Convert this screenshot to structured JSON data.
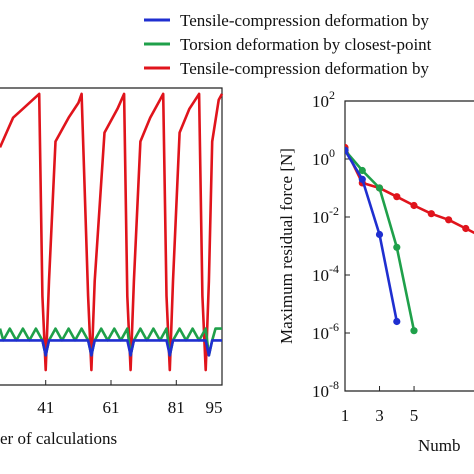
{
  "legend": {
    "placement": "top",
    "entries": [
      {
        "label": "Tensile-compression deformation by",
        "color": "#1f2fd0"
      },
      {
        "label": "Torsion deformation by closest-point",
        "color": "#1fa04a"
      },
      {
        "label": "Tensile-compression deformation by",
        "color": "#e0141c"
      }
    ]
  },
  "chart_data": [
    {
      "type": "line",
      "xlabel": "er of calculations",
      "ylabel": "",
      "xticks": [
        "41",
        "61",
        "81",
        "95"
      ],
      "xlim": [
        27,
        95
      ],
      "ylim": [
        0,
        1
      ],
      "grid": false,
      "series": [
        {
          "name": "Tensile-compression deformation by",
          "color": "#1f2fd0",
          "x": [
            27,
            40,
            41,
            42,
            54,
            55,
            56,
            66,
            67,
            68,
            78,
            79,
            80,
            90,
            91,
            92,
            95
          ],
          "y": [
            0.15,
            0.15,
            0.1,
            0.15,
            0.15,
            0.1,
            0.15,
            0.15,
            0.1,
            0.15,
            0.15,
            0.1,
            0.15,
            0.15,
            0.1,
            0.15,
            0.15
          ]
        },
        {
          "name": "Torsion deformation by closest-point",
          "color": "#1fa04a",
          "x": [
            27,
            28,
            30,
            32,
            34,
            36,
            38,
            40,
            41,
            42,
            44,
            46,
            48,
            50,
            52,
            54,
            55,
            56,
            58,
            60,
            62,
            64,
            66,
            67,
            68,
            70,
            72,
            74,
            76,
            78,
            79,
            80,
            82,
            84,
            86,
            88,
            90,
            91,
            92,
            93,
            95
          ],
          "y": [
            0.19,
            0.15,
            0.19,
            0.15,
            0.19,
            0.15,
            0.19,
            0.15,
            0.1,
            0.15,
            0.19,
            0.15,
            0.19,
            0.15,
            0.19,
            0.15,
            0.1,
            0.15,
            0.19,
            0.15,
            0.19,
            0.15,
            0.19,
            0.1,
            0.15,
            0.19,
            0.15,
            0.19,
            0.15,
            0.19,
            0.1,
            0.15,
            0.19,
            0.15,
            0.19,
            0.15,
            0.19,
            0.1,
            0.15,
            0.19,
            0.19
          ]
        },
        {
          "name": "Tensile-compression deformation by",
          "color": "#e0141c",
          "x": [
            27,
            29,
            31,
            34,
            37,
            39,
            40,
            41,
            42,
            44,
            48,
            51,
            52,
            54,
            55,
            56,
            59,
            63,
            65,
            66,
            67,
            68,
            70,
            73,
            76,
            77,
            78,
            79,
            80,
            82,
            85,
            88,
            89,
            90,
            91,
            92,
            94,
            95
          ],
          "y": [
            0.8,
            0.85,
            0.9,
            0.93,
            0.96,
            0.98,
            0.3,
            0.05,
            0.35,
            0.82,
            0.9,
            0.95,
            0.98,
            0.3,
            0.05,
            0.35,
            0.85,
            0.93,
            0.98,
            0.3,
            0.05,
            0.35,
            0.82,
            0.9,
            0.96,
            0.98,
            0.3,
            0.05,
            0.35,
            0.85,
            0.93,
            0.98,
            0.3,
            0.05,
            0.35,
            0.82,
            0.96,
            0.98
          ]
        }
      ]
    },
    {
      "type": "line",
      "ylabel": "Maximum residual force [N]",
      "xlabel": "Numb",
      "yscale": "log",
      "yticks": [
        {
          "exp": -8,
          "base": "10",
          "sup": "-8"
        },
        {
          "exp": -6,
          "base": "10",
          "sup": "-6"
        },
        {
          "exp": -4,
          "base": "10",
          "sup": "-4"
        },
        {
          "exp": -2,
          "base": "10",
          "sup": "-2"
        },
        {
          "exp": 0,
          "base": "10",
          "sup": "0"
        },
        {
          "exp": 2,
          "base": "10",
          "sup": "2"
        }
      ],
      "xticks": [
        "1",
        "3",
        "5"
      ],
      "xtick_values": [
        1,
        3,
        5
      ],
      "xlim": [
        1,
        9.4
      ],
      "ylim_exp": [
        -8,
        2
      ],
      "grid": false,
      "series": [
        {
          "name": "Tensile-compression deformation by",
          "color": "#1f2fd0",
          "x": [
            1,
            2,
            3,
            4
          ],
          "y": [
            2,
            0.2,
            0.0025,
            2.5e-06
          ]
        },
        {
          "name": "Torsion deformation by closest-point",
          "color": "#1fa04a",
          "x": [
            1,
            2,
            3,
            4,
            5
          ],
          "y": [
            2,
            0.4,
            0.1,
            0.0009,
            1.2e-06
          ]
        },
        {
          "name": "Tensile-compression deformation by",
          "color": "#e0141c",
          "x": [
            1,
            2,
            3,
            4,
            5,
            6,
            7,
            8,
            9.4
          ],
          "y": [
            2.5,
            0.15,
            0.1,
            0.05,
            0.025,
            0.013,
            0.008,
            0.004,
            0.0015
          ]
        }
      ]
    }
  ]
}
